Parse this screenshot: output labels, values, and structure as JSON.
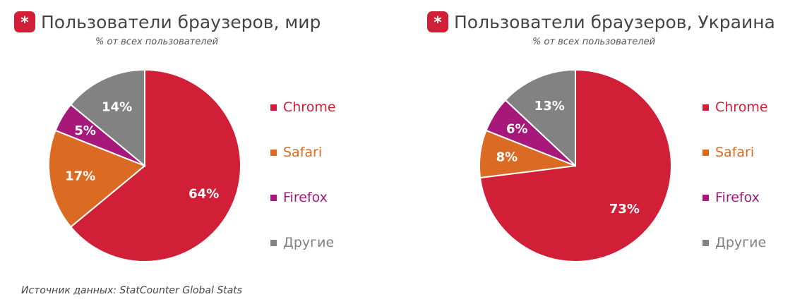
{
  "source_label": "Источник данных: StatCounter Global Stats",
  "badge_symbol": "*",
  "colors": {
    "Chrome": "#d01f36",
    "Safari": "#db6b22",
    "Firefox": "#a6197a",
    "Другие": "#828282",
    "brand": "#d01f36"
  },
  "chart_data": [
    {
      "type": "pie",
      "title": "Пользователи браузеров, мир",
      "subtitle": "% от всех пользователей",
      "categories": [
        "Chrome",
        "Safari",
        "Firefox",
        "Другие"
      ],
      "values": [
        64,
        17,
        5,
        14
      ],
      "labels": [
        "64%",
        "17%",
        "5%",
        "14%"
      ],
      "legend": [
        "Chrome",
        "Safari",
        "Firefox",
        "Другие"
      ],
      "legend_position": "right"
    },
    {
      "type": "pie",
      "title": "Пользователи браузеров, Украина",
      "subtitle": "% от всех пользователей",
      "categories": [
        "Chrome",
        "Safari",
        "Firefox",
        "Другие"
      ],
      "values": [
        73,
        8,
        6,
        13
      ],
      "labels": [
        "73%",
        "8%",
        "6%",
        "13%"
      ],
      "legend": [
        "Chrome",
        "Safari",
        "Firefox",
        "Другие"
      ],
      "legend_position": "right"
    }
  ]
}
